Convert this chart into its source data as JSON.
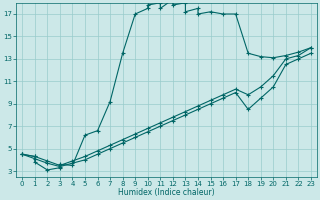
{
  "xlabel": "Humidex (Indice chaleur)",
  "bg_color": "#cce8e8",
  "line_color": "#006666",
  "grid_color": "#99cccc",
  "xlim": [
    -0.5,
    23.5
  ],
  "ylim": [
    2.5,
    18.0
  ],
  "xticks": [
    0,
    1,
    2,
    3,
    4,
    5,
    6,
    7,
    8,
    9,
    10,
    11,
    12,
    13,
    14,
    15,
    16,
    17,
    18,
    19,
    20,
    21,
    22,
    23
  ],
  "yticks": [
    3,
    5,
    7,
    9,
    11,
    13,
    15,
    17
  ],
  "line1_x": [
    0,
    1,
    1,
    2,
    3,
    3,
    4,
    5,
    6,
    7,
    8,
    9,
    10,
    10,
    11,
    11,
    12,
    12,
    13,
    13,
    14,
    14,
    15,
    16,
    17,
    18,
    19,
    20,
    21,
    22,
    23
  ],
  "line1_y": [
    4.5,
    4.3,
    3.8,
    3.1,
    3.3,
    3.6,
    3.5,
    6.2,
    6.6,
    9.2,
    13.5,
    17.0,
    17.5,
    17.8,
    18.0,
    17.5,
    18.3,
    17.8,
    18.0,
    17.2,
    17.5,
    17.0,
    17.2,
    17.0,
    17.0,
    13.5,
    13.2,
    13.1,
    13.3,
    13.6,
    14.0
  ],
  "line2_x": [
    0,
    1,
    2,
    3,
    4,
    5,
    6,
    7,
    8,
    9,
    10,
    11,
    12,
    13,
    14,
    15,
    16,
    17,
    18,
    19,
    20,
    21,
    22,
    23
  ],
  "line2_y": [
    4.5,
    4.3,
    3.9,
    3.5,
    3.9,
    4.3,
    4.8,
    5.3,
    5.8,
    6.3,
    6.8,
    7.3,
    7.8,
    8.3,
    8.8,
    9.3,
    9.8,
    10.3,
    9.8,
    10.5,
    11.5,
    13.0,
    13.3,
    14.0
  ],
  "line3_x": [
    0,
    1,
    2,
    3,
    4,
    5,
    6,
    7,
    8,
    9,
    10,
    11,
    12,
    13,
    14,
    15,
    16,
    17,
    18,
    19,
    20,
    21,
    22,
    23
  ],
  "line3_y": [
    4.5,
    4.1,
    3.7,
    3.4,
    3.7,
    4.0,
    4.5,
    5.0,
    5.5,
    6.0,
    6.5,
    7.0,
    7.5,
    8.0,
    8.5,
    9.0,
    9.5,
    10.0,
    8.5,
    9.5,
    10.5,
    12.5,
    13.0,
    13.5
  ]
}
